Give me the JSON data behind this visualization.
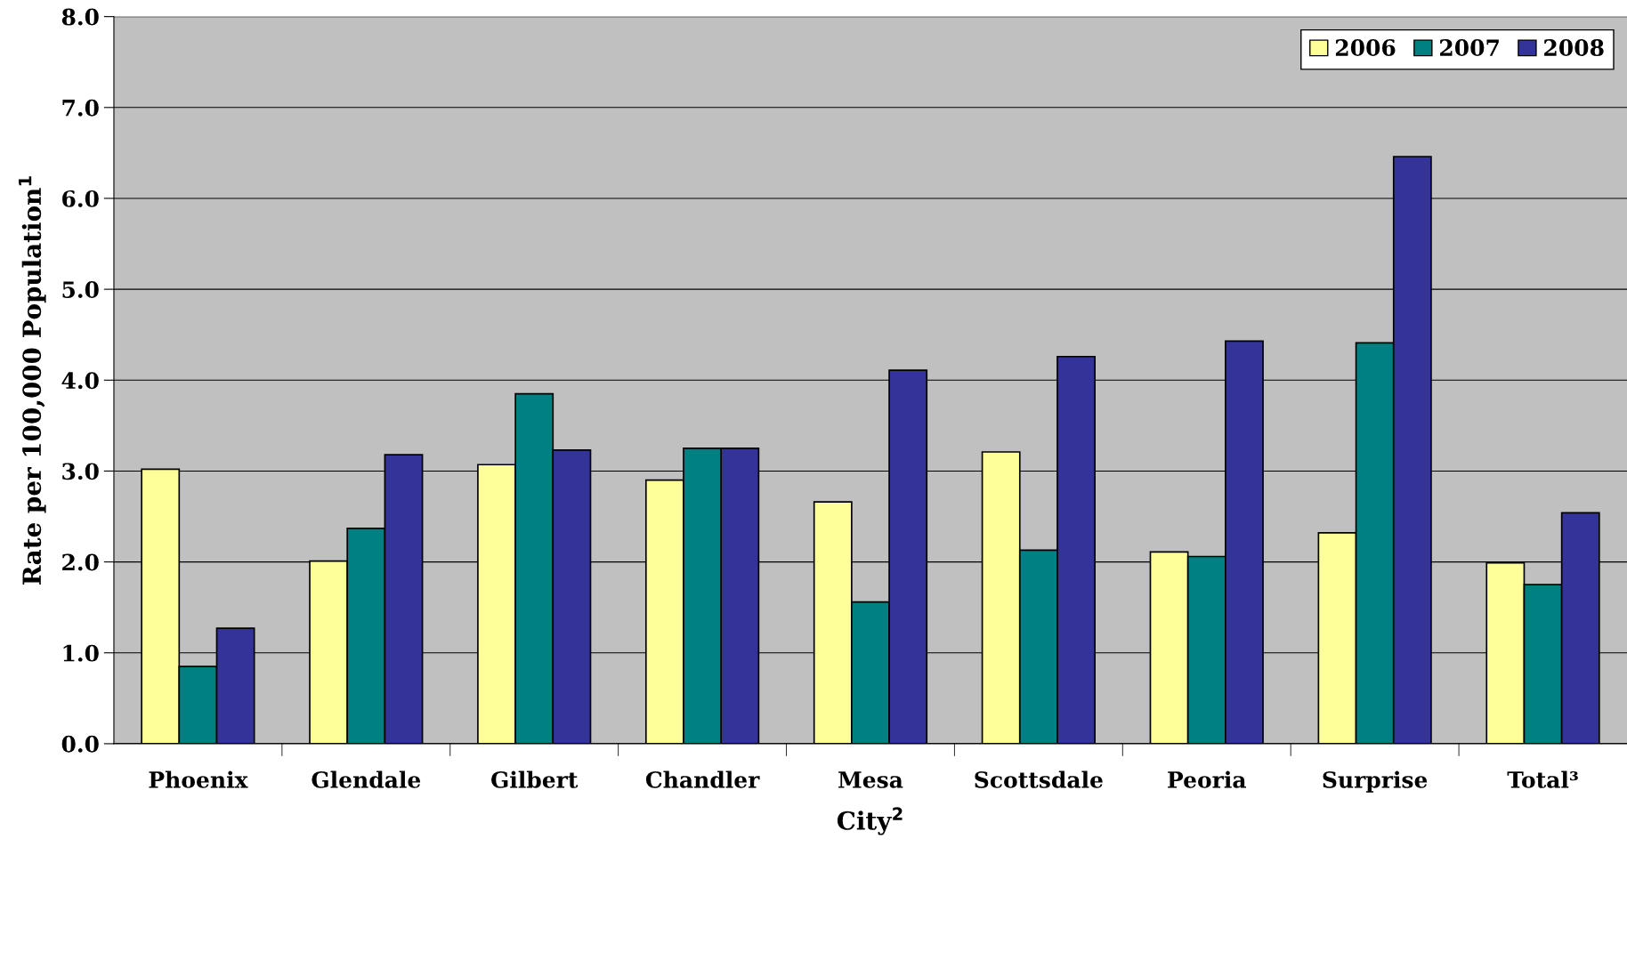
{
  "chart_data": {
    "type": "bar",
    "xlabel": "City$^{2}$",
    "ylabel": "Rate per 100,000 Population$^{1}$",
    "categories": [
      "Phoenix",
      "Glendale",
      "Gilbert",
      "Chandler",
      "Mesa",
      "Scottsdale",
      "Peoria",
      "Surprise",
      "Total³"
    ],
    "series": [
      {
        "name": "2006",
        "color": "#ffff99",
        "values": [
          3.02,
          2.01,
          3.07,
          2.9,
          2.66,
          3.21,
          2.11,
          2.32,
          1.99
        ]
      },
      {
        "name": "2007",
        "color": "#008080",
        "values": [
          0.85,
          2.37,
          3.85,
          3.25,
          1.56,
          2.13,
          2.06,
          4.41,
          1.75
        ]
      },
      {
        "name": "2008",
        "color": "#333399",
        "values": [
          1.27,
          3.18,
          3.23,
          3.25,
          4.11,
          4.26,
          4.43,
          6.46,
          2.54
        ]
      }
    ],
    "ylim": [
      0,
      8
    ],
    "yticks": [
      {
        "value": 0,
        "label": "0.0"
      },
      {
        "value": 1,
        "label": "1.0"
      },
      {
        "value": 2,
        "label": "2.0"
      },
      {
        "value": 3,
        "label": "3.0"
      },
      {
        "value": 4,
        "label": "4.0"
      },
      {
        "value": 5,
        "label": "5.0"
      },
      {
        "value": 6,
        "label": "6.0"
      },
      {
        "value": 7,
        "label": "7.0"
      },
      {
        "value": 8,
        "label": "8.0"
      }
    ],
    "grid": "y",
    "legend": "top right"
  }
}
